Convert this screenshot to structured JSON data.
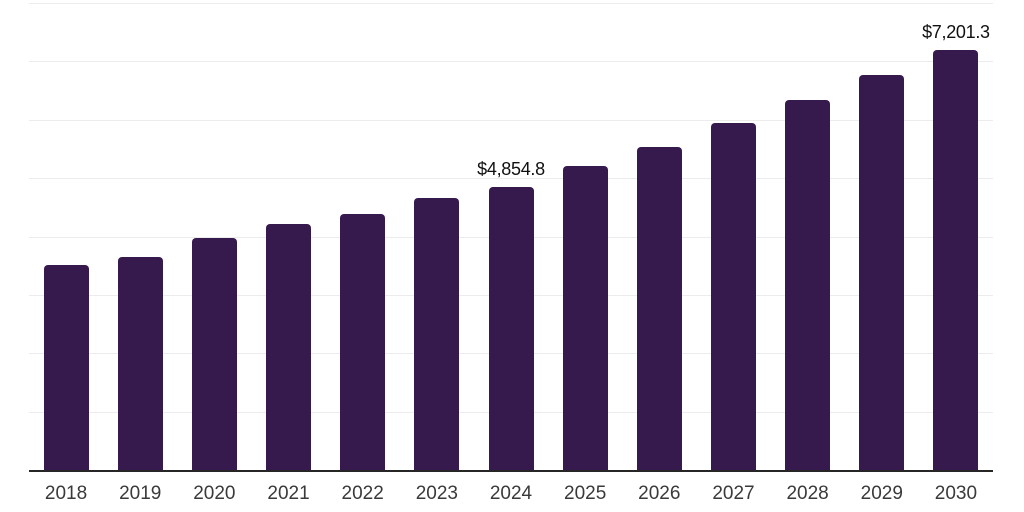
{
  "chart_data": {
    "type": "bar",
    "title": "",
    "xlabel": "",
    "ylabel": "",
    "categories": [
      "2018",
      "2019",
      "2020",
      "2021",
      "2022",
      "2023",
      "2024",
      "2025",
      "2026",
      "2027",
      "2028",
      "2029",
      "2030"
    ],
    "values": [
      3520,
      3650,
      3980,
      4220,
      4390,
      4660,
      4854.8,
      5210,
      5540,
      5950,
      6340,
      6770,
      7201.3
    ],
    "data_labels": [
      null,
      null,
      null,
      null,
      null,
      null,
      "$4,854.8",
      null,
      null,
      null,
      null,
      null,
      "$7,201.3"
    ],
    "ylim": [
      0,
      8000
    ],
    "gridline_step": 1000,
    "grid": true,
    "legend": "none",
    "y_axis_tick_labels": "none",
    "colors": {
      "bar": "#371A4D",
      "axis_line": "#262626",
      "gridline": "#ECECEC",
      "data_label": "#111111",
      "tick_label": "#3A3A3A",
      "background": "#FFFFFF"
    }
  }
}
